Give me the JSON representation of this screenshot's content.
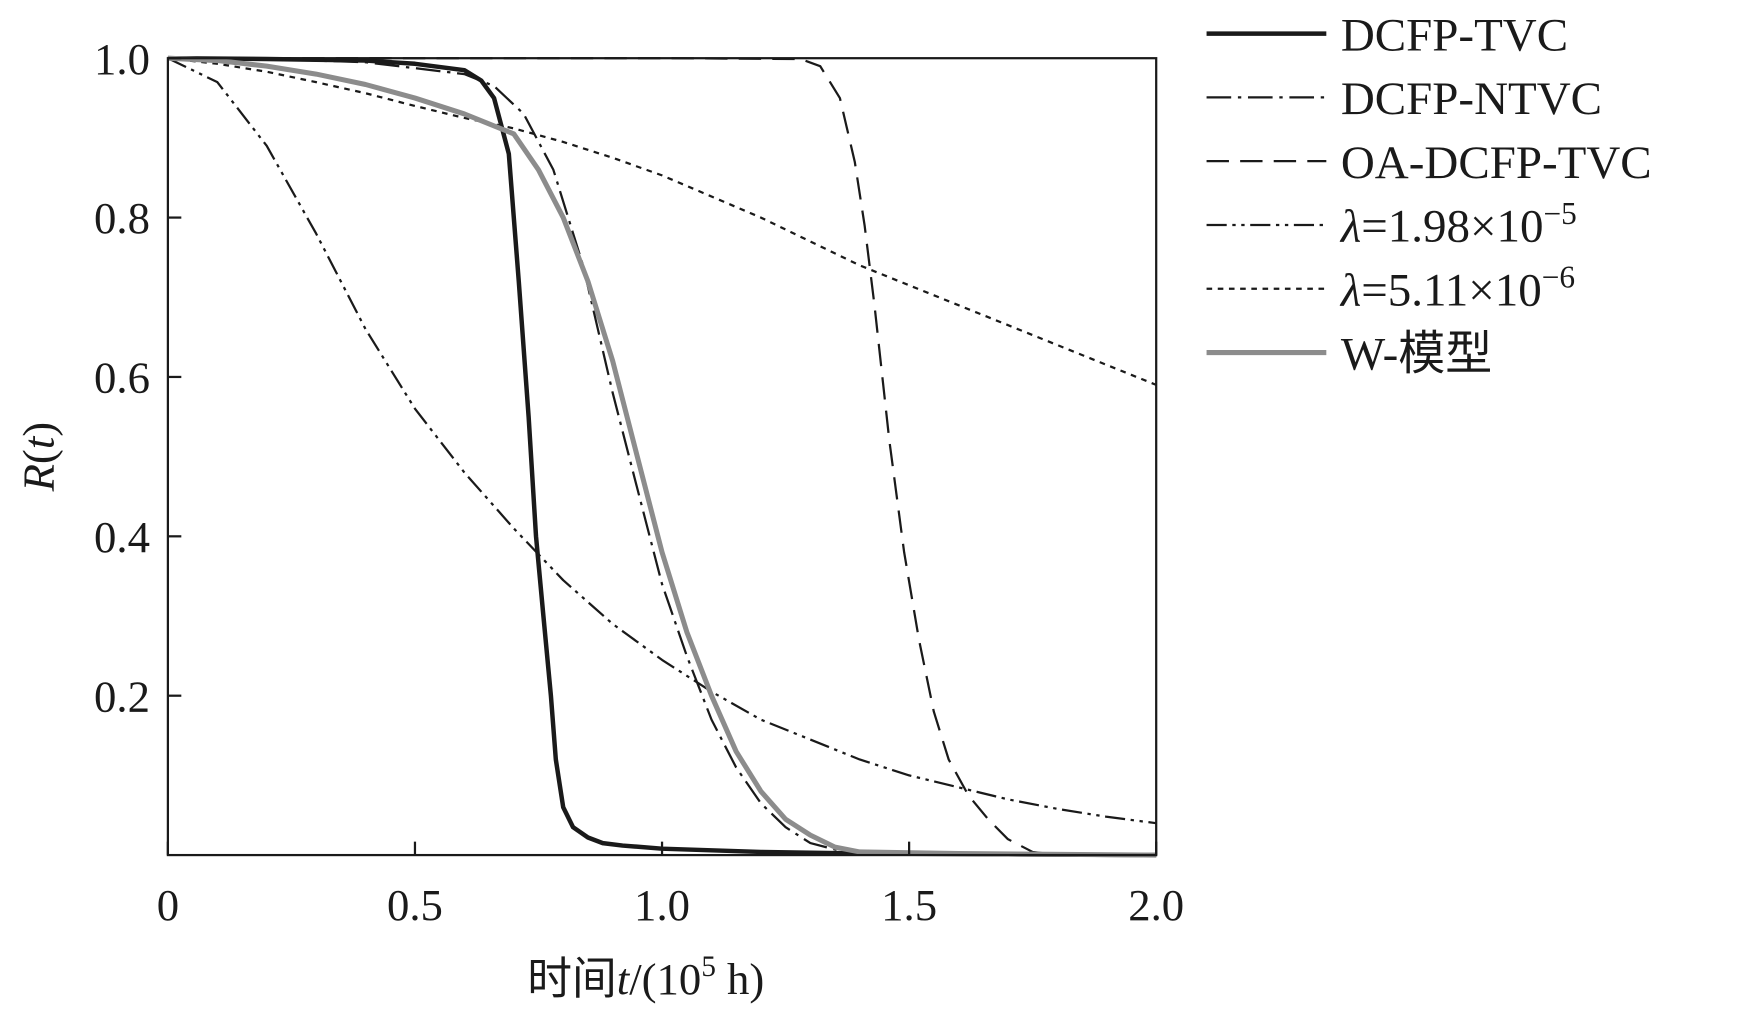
{
  "chart_data": {
    "type": "line",
    "title": "",
    "xlabel": "时间t/(10⁵ h)",
    "xlabel_parts": {
      "prefix": "时间",
      "var": "t",
      "mid": "/(10",
      "sup": "5",
      "suffix": " h)"
    },
    "ylabel": "R(t)",
    "ylabel_parts": {
      "var": "R",
      "open": "(",
      "arg": "t",
      "close": ")"
    },
    "xlim": [
      0,
      2.0
    ],
    "ylim": [
      0,
      1.0
    ],
    "xticks": [
      0,
      0.5,
      1.0,
      1.5,
      2.0
    ],
    "xtick_labels": [
      "0",
      "0.5",
      "1.0",
      "1.5",
      "2.0"
    ],
    "yticks": [
      0.2,
      0.4,
      0.6,
      0.8,
      1.0
    ],
    "ytick_labels": [
      "0.2",
      "0.4",
      "0.6",
      "0.8",
      "1.0"
    ],
    "grid": false,
    "legend_placement": "outside-right-top",
    "series": [
      {
        "name": "DCFP-TVC",
        "color": "#1a1a1a",
        "style": "solid-thick",
        "x": [
          0,
          0.2,
          0.4,
          0.5,
          0.6,
          0.634,
          0.66,
          0.69,
          0.71,
          0.73,
          0.745,
          0.76,
          0.775,
          0.785,
          0.8,
          0.82,
          0.85,
          0.88,
          0.92,
          1.0,
          1.2,
          1.4,
          1.7,
          2.0
        ],
        "y": [
          1.0,
          0.999,
          0.997,
          0.993,
          0.985,
          0.972,
          0.95,
          0.88,
          0.72,
          0.55,
          0.4,
          0.3,
          0.2,
          0.12,
          0.06,
          0.035,
          0.022,
          0.015,
          0.012,
          0.008,
          0.004,
          0.002,
          0.001,
          0.0
        ]
      },
      {
        "name": "DCFP-NTVC",
        "color": "#1a1a1a",
        "style": "dash-dot",
        "x": [
          0,
          0.2,
          0.4,
          0.6,
          0.66,
          0.72,
          0.78,
          0.84,
          0.9,
          0.95,
          1.0,
          1.05,
          1.1,
          1.15,
          1.2,
          1.25,
          1.3,
          1.35,
          1.4,
          1.6,
          2.0
        ],
        "y": [
          1.0,
          0.999,
          0.995,
          0.98,
          0.965,
          0.93,
          0.86,
          0.74,
          0.58,
          0.46,
          0.34,
          0.25,
          0.17,
          0.11,
          0.065,
          0.035,
          0.015,
          0.007,
          0.003,
          0.001,
          0.0
        ]
      },
      {
        "name": "OA-DCFP-TVC",
        "color": "#1a1a1a",
        "style": "dashed",
        "x": [
          0,
          1.0,
          1.28,
          1.32,
          1.36,
          1.39,
          1.41,
          1.43,
          1.46,
          1.49,
          1.52,
          1.55,
          1.58,
          1.62,
          1.66,
          1.7,
          1.75,
          1.8,
          2.0
        ],
        "y": [
          1.0,
          1.0,
          0.999,
          0.99,
          0.95,
          0.87,
          0.79,
          0.69,
          0.52,
          0.38,
          0.27,
          0.18,
          0.12,
          0.075,
          0.045,
          0.02,
          0.004,
          0.0,
          0.0
        ]
      },
      {
        "name": "λ=1.98×10⁻⁵",
        "label_parts": {
          "sym": "λ",
          "body": "=1.98×10",
          "sup": "−5"
        },
        "color": "#1a1a1a",
        "style": "dash-dot-dot",
        "x": [
          0,
          0.1,
          0.2,
          0.3,
          0.4,
          0.5,
          0.6,
          0.7,
          0.8,
          0.9,
          1.0,
          1.1,
          1.2,
          1.3,
          1.4,
          1.5,
          1.6,
          1.7,
          1.8,
          1.9,
          2.0
        ],
        "y": [
          1.0,
          0.97,
          0.89,
          0.78,
          0.66,
          0.56,
          0.48,
          0.41,
          0.345,
          0.29,
          0.245,
          0.205,
          0.17,
          0.145,
          0.12,
          0.1,
          0.085,
          0.07,
          0.058,
          0.048,
          0.04
        ]
      },
      {
        "name": "λ=5.11×10⁻⁶",
        "label_parts": {
          "sym": "λ",
          "body": "=5.11×10",
          "sup": "−6"
        },
        "color": "#1a1a1a",
        "style": "dotted",
        "x": [
          0,
          0.1,
          0.2,
          0.3,
          0.4,
          0.5,
          0.6,
          0.7,
          0.8,
          0.9,
          1.0,
          1.2,
          1.4,
          1.6,
          1.8,
          2.0
        ],
        "y": [
          1.0,
          0.993,
          0.983,
          0.97,
          0.956,
          0.94,
          0.925,
          0.912,
          0.895,
          0.875,
          0.853,
          0.8,
          0.74,
          0.69,
          0.64,
          0.59
        ]
      },
      {
        "name": "W-模型",
        "color": "#8c8c8c",
        "style": "solid-gray",
        "x": [
          0,
          0.1,
          0.2,
          0.3,
          0.4,
          0.5,
          0.6,
          0.7,
          0.75,
          0.8,
          0.85,
          0.9,
          0.95,
          1.0,
          1.05,
          1.1,
          1.15,
          1.2,
          1.25,
          1.3,
          1.35,
          1.4,
          1.6,
          2.0
        ],
        "y": [
          1.0,
          0.997,
          0.99,
          0.98,
          0.967,
          0.95,
          0.93,
          0.905,
          0.86,
          0.8,
          0.72,
          0.62,
          0.5,
          0.38,
          0.28,
          0.2,
          0.13,
          0.08,
          0.045,
          0.025,
          0.01,
          0.004,
          0.002,
          0.0
        ]
      }
    ]
  }
}
